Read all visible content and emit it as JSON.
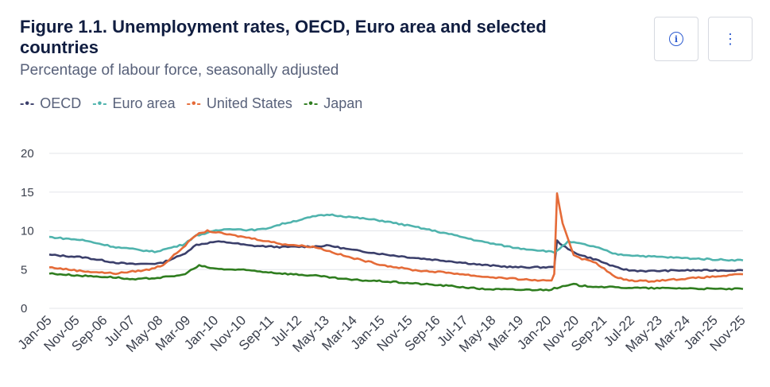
{
  "header": {
    "title": "Figure 1.1. Unemployment rates, OECD, Euro area and selected countries",
    "subtitle": "Percentage of labour force, seasonally adjusted",
    "info_icon": "info-icon",
    "menu_icon": "more-vertical-icon"
  },
  "chart_data": {
    "type": "line",
    "title": "Figure 1.1. Unemployment rates, OECD, Euro area and selected countries",
    "subtitle": "Percentage of labour force, seasonally adjusted",
    "xlabel": "",
    "ylabel": "",
    "ylim": [
      0,
      20
    ],
    "yticks": [
      0,
      5,
      10,
      15,
      20
    ],
    "x_range": [
      "Jan-05",
      "Nov-25"
    ],
    "xticks": [
      "Jan-05",
      "Nov-05",
      "Sep-06",
      "Jul-07",
      "May-08",
      "Mar-09",
      "Jan-10",
      "Nov-10",
      "Sep-11",
      "Jul-12",
      "May-13",
      "Mar-14",
      "Jan-15",
      "Nov-15",
      "Sep-16",
      "Jul-17",
      "May-18",
      "Mar-19",
      "Jan-20",
      "Nov-20",
      "Sep-21",
      "Jul-22",
      "May-23",
      "Mar-24",
      "Jan-25",
      "Nov-25"
    ],
    "grid": "horizontal",
    "legend_position": "top-left",
    "series": [
      {
        "name": "OECD",
        "color": "#3b3f6b",
        "points": [
          [
            "2005-01",
            6.9
          ],
          [
            "2006-01",
            6.6
          ],
          [
            "2007-01",
            5.9
          ],
          [
            "2007-07",
            5.7
          ],
          [
            "2008-05",
            5.8
          ],
          [
            "2009-01",
            6.9
          ],
          [
            "2009-06",
            8.2
          ],
          [
            "2010-01",
            8.6
          ],
          [
            "2010-06",
            8.5
          ],
          [
            "2011-01",
            8.1
          ],
          [
            "2012-01",
            7.9
          ],
          [
            "2013-01",
            8.0
          ],
          [
            "2013-06",
            8.1
          ],
          [
            "2014-01",
            7.6
          ],
          [
            "2015-01",
            7.0
          ],
          [
            "2016-01",
            6.5
          ],
          [
            "2017-01",
            6.1
          ],
          [
            "2018-01",
            5.6
          ],
          [
            "2019-01",
            5.3
          ],
          [
            "2019-12",
            5.3
          ],
          [
            "2020-02",
            5.3
          ],
          [
            "2020-03",
            5.4
          ],
          [
            "2020-04",
            8.7
          ],
          [
            "2020-08",
            7.6
          ],
          [
            "2021-01",
            6.8
          ],
          [
            "2021-06",
            6.3
          ],
          [
            "2022-01",
            5.3
          ],
          [
            "2022-06",
            4.9
          ],
          [
            "2023-01",
            4.8
          ],
          [
            "2024-01",
            4.9
          ],
          [
            "2025-01",
            4.9
          ],
          [
            "2025-11",
            4.9
          ]
        ]
      },
      {
        "name": "Euro area",
        "color": "#4fb3ad",
        "points": [
          [
            "2005-01",
            9.2
          ],
          [
            "2006-01",
            8.8
          ],
          [
            "2007-01",
            7.9
          ],
          [
            "2008-03",
            7.3
          ],
          [
            "2009-01",
            8.2
          ],
          [
            "2009-06",
            9.4
          ],
          [
            "2010-01",
            10.0
          ],
          [
            "2010-06",
            10.3
          ],
          [
            "2011-01",
            10.1
          ],
          [
            "2011-06",
            10.2
          ],
          [
            "2012-01",
            10.9
          ],
          [
            "2013-01",
            11.9
          ],
          [
            "2013-06",
            12.1
          ],
          [
            "2014-01",
            11.8
          ],
          [
            "2015-01",
            11.3
          ],
          [
            "2016-01",
            10.5
          ],
          [
            "2017-01",
            9.6
          ],
          [
            "2018-01",
            8.6
          ],
          [
            "2019-01",
            7.8
          ],
          [
            "2019-12",
            7.4
          ],
          [
            "2020-03",
            7.2
          ],
          [
            "2020-08",
            8.6
          ],
          [
            "2021-01",
            8.3
          ],
          [
            "2021-06",
            7.9
          ],
          [
            "2022-01",
            7.0
          ],
          [
            "2023-01",
            6.7
          ],
          [
            "2024-01",
            6.5
          ],
          [
            "2025-01",
            6.3
          ],
          [
            "2025-11",
            6.2
          ]
        ]
      },
      {
        "name": "United States",
        "color": "#e56b38",
        "points": [
          [
            "2005-01",
            5.3
          ],
          [
            "2006-01",
            4.8
          ],
          [
            "2007-01",
            4.5
          ],
          [
            "2008-01",
            5.0
          ],
          [
            "2008-06",
            5.6
          ],
          [
            "2009-01",
            7.8
          ],
          [
            "2009-06",
            9.5
          ],
          [
            "2009-10",
            10.0
          ],
          [
            "2010-06",
            9.5
          ],
          [
            "2011-01",
            9.1
          ],
          [
            "2012-01",
            8.3
          ],
          [
            "2013-01",
            7.9
          ],
          [
            "2014-01",
            6.6
          ],
          [
            "2015-01",
            5.6
          ],
          [
            "2016-01",
            4.9
          ],
          [
            "2017-01",
            4.6
          ],
          [
            "2018-01",
            4.1
          ],
          [
            "2019-01",
            3.8
          ],
          [
            "2020-02",
            3.5
          ],
          [
            "2020-03",
            4.4
          ],
          [
            "2020-04",
            14.8
          ],
          [
            "2020-06",
            11.0
          ],
          [
            "2020-10",
            6.9
          ],
          [
            "2021-01",
            6.4
          ],
          [
            "2021-06",
            5.9
          ],
          [
            "2022-01",
            4.0
          ],
          [
            "2022-06",
            3.6
          ],
          [
            "2023-01",
            3.5
          ],
          [
            "2024-01",
            3.8
          ],
          [
            "2025-01",
            4.1
          ],
          [
            "2025-11",
            4.4
          ]
        ]
      },
      {
        "name": "Japan",
        "color": "#2f7d1f",
        "points": [
          [
            "2005-01",
            4.5
          ],
          [
            "2006-01",
            4.2
          ],
          [
            "2007-01",
            4.0
          ],
          [
            "2007-07",
            3.7
          ],
          [
            "2008-06",
            4.0
          ],
          [
            "2009-01",
            4.3
          ],
          [
            "2009-07",
            5.5
          ],
          [
            "2010-01",
            5.1
          ],
          [
            "2011-01",
            4.9
          ],
          [
            "2012-01",
            4.5
          ],
          [
            "2013-01",
            4.2
          ],
          [
            "2014-01",
            3.7
          ],
          [
            "2015-01",
            3.5
          ],
          [
            "2016-01",
            3.2
          ],
          [
            "2017-01",
            2.9
          ],
          [
            "2018-01",
            2.5
          ],
          [
            "2019-01",
            2.4
          ],
          [
            "2020-01",
            2.4
          ],
          [
            "2020-10",
            3.1
          ],
          [
            "2021-01",
            2.9
          ],
          [
            "2022-01",
            2.7
          ],
          [
            "2023-01",
            2.6
          ],
          [
            "2024-01",
            2.6
          ],
          [
            "2025-01",
            2.5
          ],
          [
            "2025-11",
            2.5
          ]
        ]
      }
    ]
  }
}
